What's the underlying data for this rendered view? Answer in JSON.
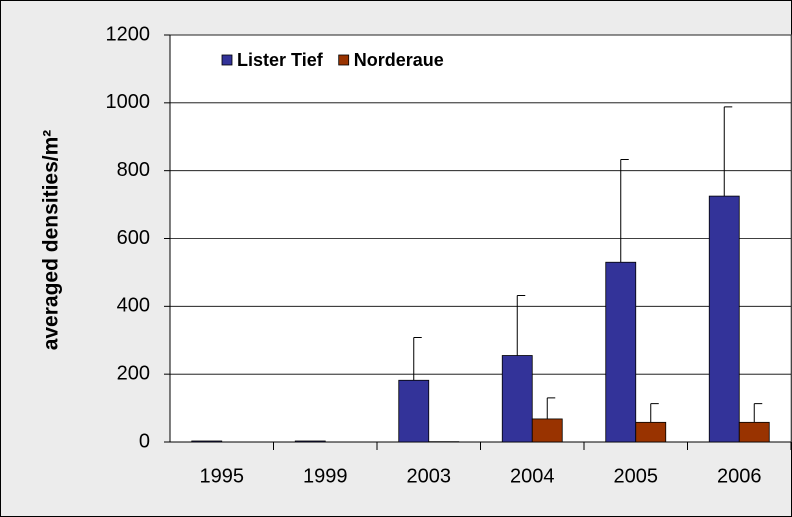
{
  "chart_data": {
    "type": "bar",
    "y_label": "averaged densities/m²",
    "categories": [
      "1995",
      "1999",
      "2003",
      "2004",
      "2005",
      "2006"
    ],
    "series": [
      {
        "name": "Lister Tief",
        "color": "#333399",
        "values": [
          3,
          3,
          182,
          255,
          530,
          725
        ],
        "errors": [
          null,
          null,
          126,
          177,
          303,
          263
        ]
      },
      {
        "name": "Norderaue",
        "color": "#993300",
        "values": [
          0,
          0,
          1,
          68,
          58,
          58
        ],
        "errors": [
          null,
          null,
          null,
          62,
          55,
          55
        ]
      }
    ],
    "ylim": [
      0,
      1200
    ],
    "yticks": [
      0,
      200,
      400,
      600,
      800,
      1000,
      1200
    ],
    "grid": true,
    "legend": "top-left"
  }
}
